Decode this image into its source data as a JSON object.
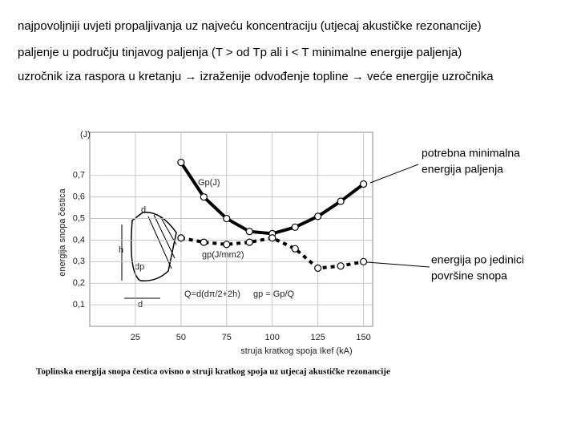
{
  "header": {
    "lines": [
      "najpovoljniji uvjeti propaljivanja uz najveću koncentraciju (utjecaj akustičke rezonancije)",
      "paljenje u području tinjavog paljenja (T > od Tp ali i < T minimalne energije paljenja)",
      "uzročnik iza raspora u kretanju → izraženije odvođenje topline → veće energije uzročnika"
    ]
  },
  "chart_data": {
    "type": "line",
    "caption": "Toplinska energija snopa čestica ovisno o struji kratkog spoja uz utjecaj akustičke rezonancije",
    "x_label": "struja kratkog spoja  Ikef (kA)",
    "y_label": "energija snopa čestica",
    "y_unit": "(J)",
    "x": [
      50,
      62.5,
      75,
      87.5,
      100,
      112.5,
      125,
      137.5,
      150
    ],
    "series": [
      {
        "name": "Gp(J)",
        "color": "#000000",
        "style": "solid",
        "values": [
          0.76,
          0.6,
          0.5,
          0.44,
          0.43,
          0.46,
          0.51,
          0.58,
          0.66
        ]
      },
      {
        "name": "gp(J/mm2)",
        "color": "#000000",
        "style": "dotted",
        "values": [
          0.41,
          0.39,
          0.38,
          0.39,
          0.41,
          0.36,
          0.27,
          0.28,
          0.3
        ]
      }
    ],
    "xlim": [
      0,
      155
    ],
    "ylim": [
      0,
      0.9
    ],
    "xticks": [
      25,
      50,
      75,
      100,
      125,
      150
    ],
    "yticks": [
      {
        "value": 0.1,
        "label": "0,1"
      },
      {
        "value": 0.2,
        "label": "0,2"
      },
      {
        "value": 0.3,
        "label": "0,3"
      },
      {
        "value": 0.4,
        "label": "0,4"
      },
      {
        "value": 0.5,
        "label": "0,5"
      },
      {
        "value": 0.6,
        "label": "0,6"
      },
      {
        "value": 0.7,
        "label": "0,7"
      }
    ],
    "grid": true,
    "annotations": [
      {
        "lines": [
          "potrebna minimalna",
          "energija paljenja"
        ]
      },
      {
        "lines": [
          "energija po jedinici",
          "površine snopa"
        ]
      }
    ],
    "formulas": [
      "Q=d(dπ/2+2h)",
      "gp = Gp/Q"
    ],
    "inset_labels": [
      "d",
      "h",
      "dp",
      "d"
    ]
  }
}
